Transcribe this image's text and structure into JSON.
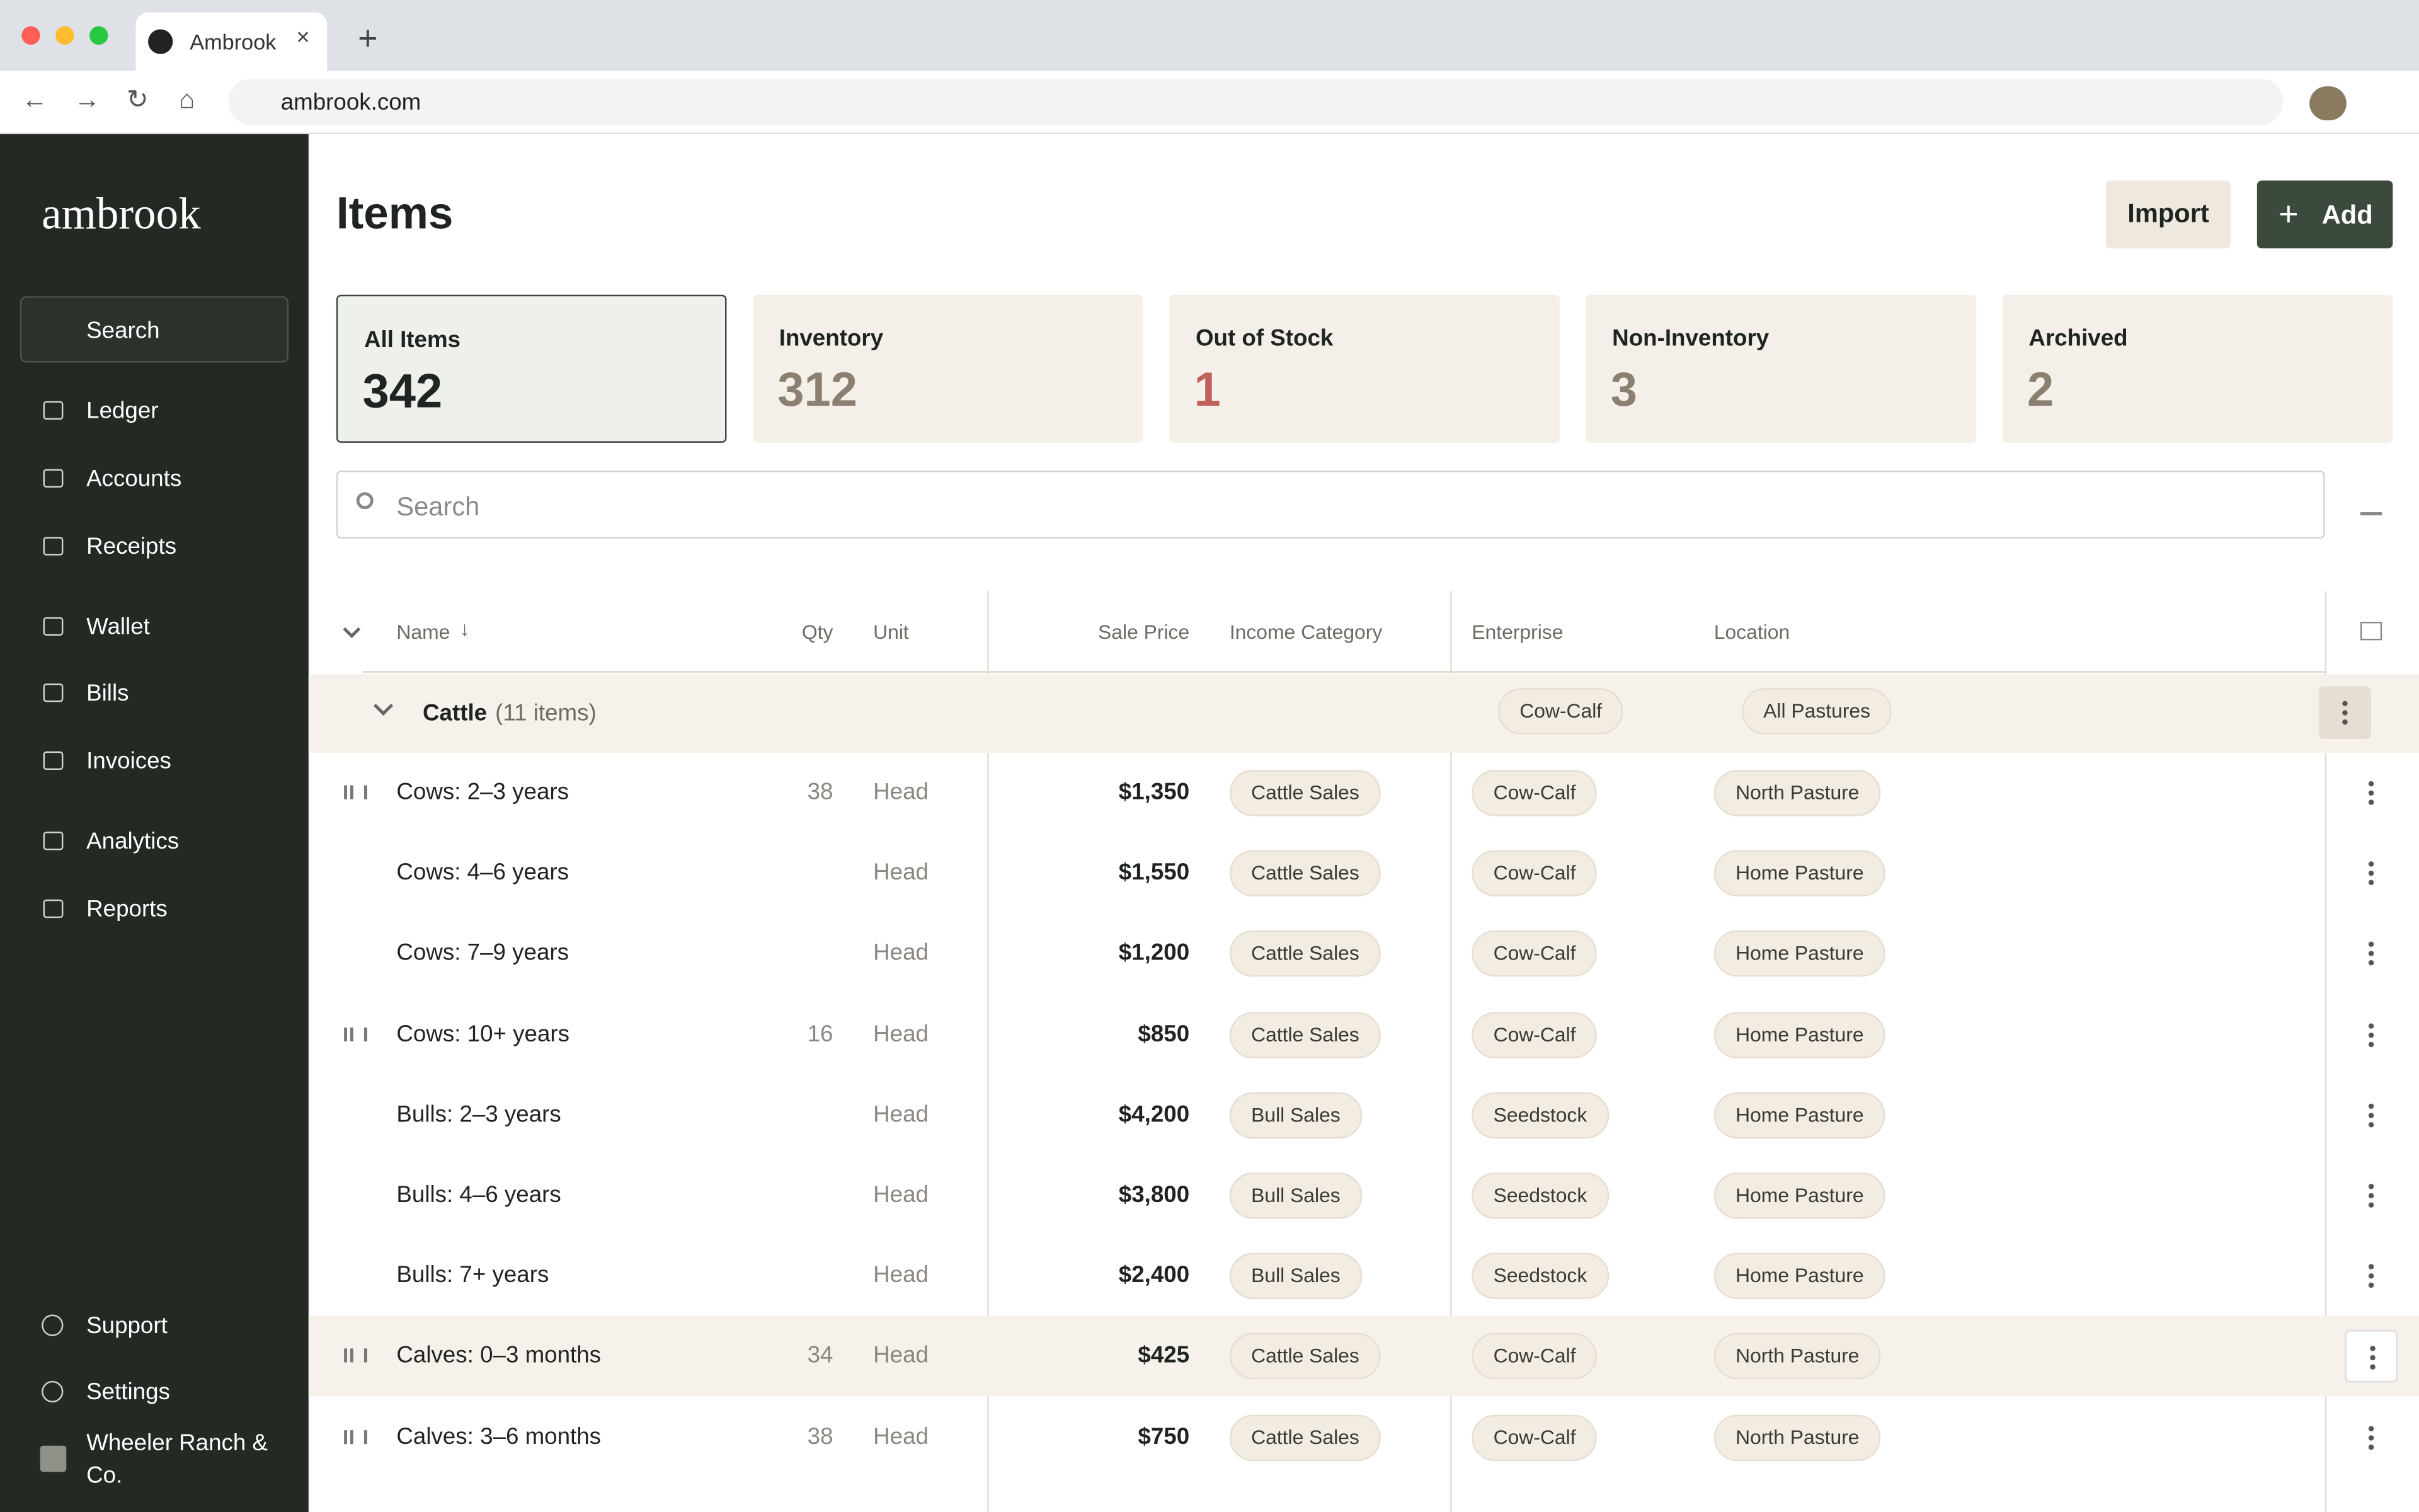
{
  "browser": {
    "tab_title": "Ambrook",
    "url": "ambrook.com"
  },
  "sidebar": {
    "logo": "ambrook",
    "search": "Search",
    "nav": [
      "Ledger",
      "Accounts",
      "Receipts",
      "Wallet",
      "Bills",
      "Invoices",
      "Analytics",
      "Reports"
    ],
    "footer": [
      "Support",
      "Settings"
    ],
    "org": "Wheeler Ranch & Co."
  },
  "header": {
    "title": "Items",
    "import": "Import",
    "add": "Add"
  },
  "stats": [
    {
      "label": "All Items",
      "value": 342
    },
    {
      "label": "Inventory",
      "value": 312
    },
    {
      "label": "Out of Stock",
      "value": 1
    },
    {
      "label": "Non-Inventory",
      "value": 3
    },
    {
      "label": "Archived",
      "value": 2
    }
  ],
  "search_placeholder": "Search",
  "table": {
    "columns": [
      "Name",
      "Qty",
      "Unit",
      "Sale Price",
      "Income Category",
      "Enterprise",
      "Location"
    ],
    "group": {
      "name": "Cattle",
      "count": "(11 items)",
      "enterprise": "Cow-Calf",
      "location": "All Pastures"
    },
    "rows": [
      [
        "Cows: 2–3 years",
        38,
        "Head",
        "$1,350",
        "Cattle Sales",
        "Cow-Calf",
        "North Pasture"
      ],
      [
        "Cows: 4–6 years",
        null,
        "Head",
        "$1,550",
        "Cattle Sales",
        "Cow-Calf",
        "Home Pasture"
      ],
      [
        "Cows: 7–9 years",
        null,
        "Head",
        "$1,200",
        "Cattle Sales",
        "Cow-Calf",
        "Home Pasture"
      ],
      [
        "Cows: 10+ years",
        16,
        "Head",
        "$850",
        "Cattle Sales",
        "Cow-Calf",
        "Home Pasture"
      ],
      [
        "Bulls: 2–3 years",
        null,
        "Head",
        "$4,200",
        "Bull Sales",
        "Seedstock",
        "Home Pasture"
      ],
      [
        "Bulls: 4–6 years",
        null,
        "Head",
        "$3,800",
        "Bull Sales",
        "Seedstock",
        "Home Pasture"
      ],
      [
        "Bulls: 7+ years",
        null,
        "Head",
        "$2,400",
        "Bull Sales",
        "Seedstock",
        "Home Pasture"
      ],
      [
        "Calves: 0–3 months",
        34,
        "Head",
        "$425",
        "Cattle Sales",
        "Cow-Calf",
        "North Pasture"
      ],
      [
        "Calves: 3–6 months",
        38,
        "Head",
        "$750",
        "Cattle Sales",
        "Cow-Calf",
        "North Pasture"
      ]
    ]
  }
}
